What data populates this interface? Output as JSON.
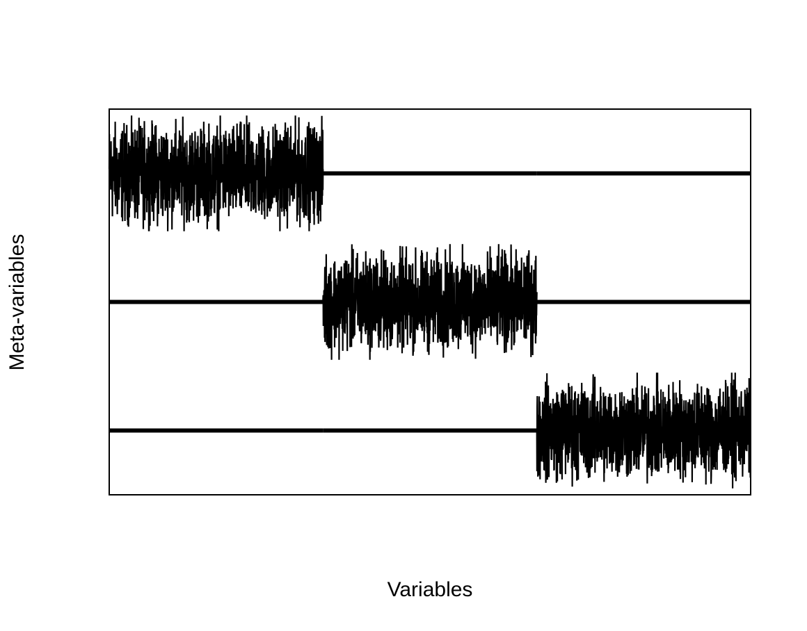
{
  "chart_data": {
    "type": "line",
    "title": "",
    "xlabel": "Variables",
    "ylabel": "Meta-variables",
    "axes_ticks": "none",
    "grid": false,
    "legend": "none",
    "line_color": "#000000",
    "n_blocks": 3,
    "blocks": [
      {
        "name": "",
        "base_level": 3,
        "active_block": 1,
        "active_amplitude": 0.45
      },
      {
        "name": "",
        "base_level": 2,
        "active_block": 2,
        "active_amplitude": 0.45
      },
      {
        "name": "",
        "base_level": 1,
        "active_block": 3,
        "active_amplitude": 0.45
      }
    ],
    "x_range": [
      1,
      3
    ],
    "y_range": [
      0.5,
      3.5
    ]
  }
}
